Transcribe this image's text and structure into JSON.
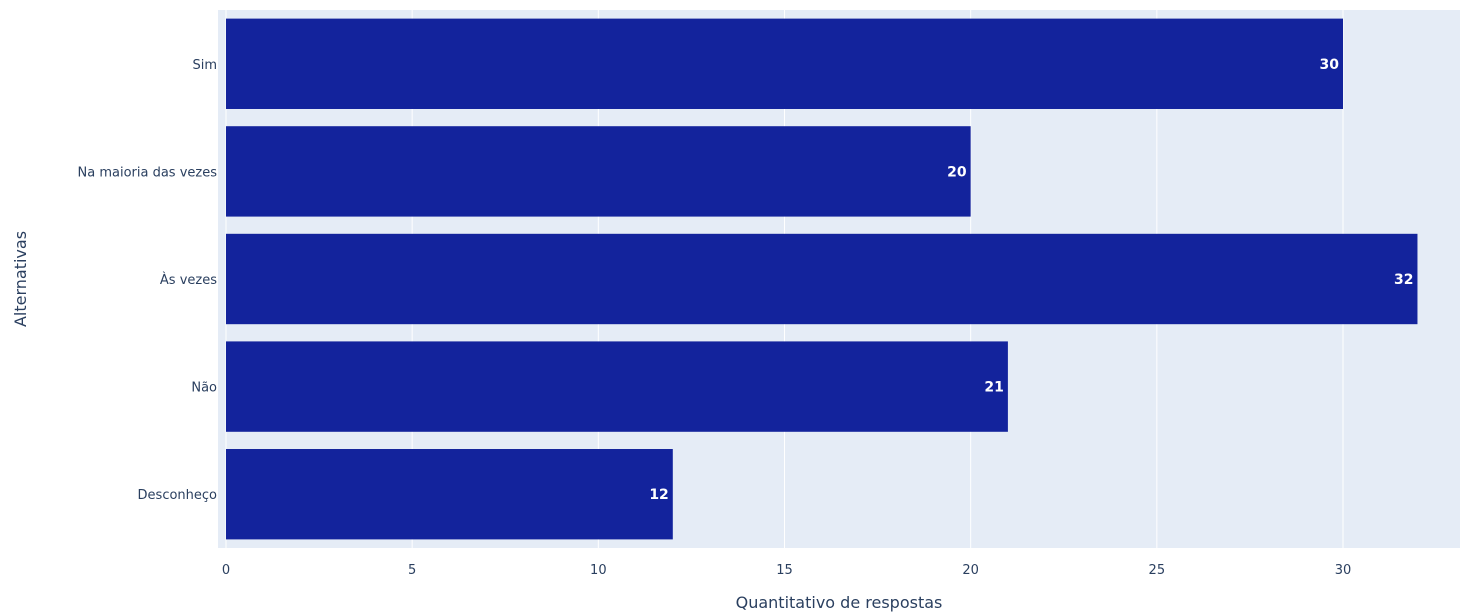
{
  "chart_data": {
    "type": "bar",
    "orientation": "horizontal",
    "categories": [
      "Sim",
      "Na maioria das vezes",
      "Às vezes",
      "Não",
      "Desconheço"
    ],
    "values": [
      30,
      20,
      32,
      21,
      12
    ],
    "data_labels": [
      "30",
      "20",
      "32",
      "21",
      "12"
    ],
    "xlabel": "Quantitativo de respostas",
    "ylabel": "Alternativas",
    "xlim": [
      0,
      33.5
    ],
    "xticks": [
      0,
      5,
      10,
      15,
      20,
      25,
      30
    ],
    "xtick_labels": [
      "0",
      "5",
      "10",
      "15",
      "20",
      "25",
      "30"
    ],
    "grid": true,
    "bar_color": "#13239c",
    "plot_background": "#e5ecf6",
    "grid_color": "#ffffff",
    "text_color": "#2a3f5f"
  }
}
